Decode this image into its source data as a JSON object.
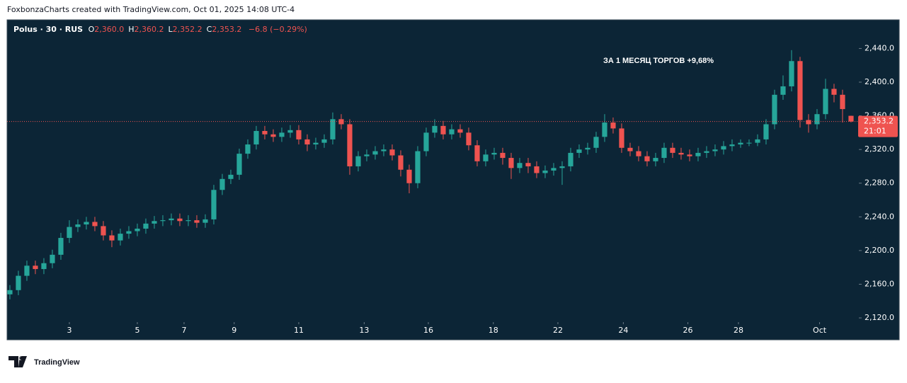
{
  "header": {
    "attribution": "FoxbonzaCharts created with TradingView.com, Oct 01, 2025 14:08 UTC-4"
  },
  "chart_data": {
    "type": "candlestick",
    "symbol": "Polus · 30 · RUS",
    "legend": [
      {
        "key": "O",
        "value": "2,360.0"
      },
      {
        "key": "H",
        "value": "2,360.2"
      },
      {
        "key": "L",
        "value": "2,352.2"
      },
      {
        "key": "C",
        "value": "2,353.2"
      }
    ],
    "change": "−6.8 (−0.29%)",
    "annotation": "ЗА 1 МЕСЯЦ ТОРГОВ +9,68%",
    "last_price_label": "2,353.2",
    "countdown": "21:01",
    "up_color": "#26a69a",
    "down_color": "#ef5350",
    "background": "#0c2536",
    "price_line": true,
    "xlim": [
      -0.33,
      99.92
    ],
    "xticks": [
      {
        "value": 7,
        "label": "3"
      },
      {
        "value": 15,
        "label": "5"
      },
      {
        "value": 20.5,
        "label": "7"
      },
      {
        "value": 26.4,
        "label": "9"
      },
      {
        "value": 34,
        "label": "11"
      },
      {
        "value": 41.7,
        "label": "13"
      },
      {
        "value": 49.25,
        "label": "16"
      },
      {
        "value": 56.9,
        "label": "18"
      },
      {
        "value": 64.5,
        "label": "22"
      },
      {
        "value": 72.2,
        "label": "24"
      },
      {
        "value": 79.8,
        "label": "26"
      },
      {
        "value": 85.75,
        "label": "28"
      },
      {
        "value": 95.3,
        "label": "Oct"
      }
    ],
    "ylim": [
      2115,
      2474
    ],
    "yticks": [
      {
        "value": 2120,
        "label": "2,120.0"
      },
      {
        "value": 2160,
        "label": "2,160.0"
      },
      {
        "value": 2200,
        "label": "2,200.0"
      },
      {
        "value": 2240,
        "label": "2,240.0"
      },
      {
        "value": 2280,
        "label": "2,280.0"
      },
      {
        "value": 2320,
        "label": "2,320.0"
      },
      {
        "value": 2360,
        "label": "2,360.0"
      },
      {
        "value": 2400,
        "label": "2,400.0"
      },
      {
        "value": 2440,
        "label": "2,440.0"
      }
    ],
    "open": [
      2148,
      2153,
      2170,
      2182,
      2178,
      2185,
      2195,
      2215,
      2228,
      2231,
      2234,
      2229,
      2218,
      2212,
      2220,
      2223,
      2226,
      2232,
      2235,
      2236,
      2238,
      2235,
      2236,
      2233,
      2237,
      2272,
      2285,
      2290,
      2315,
      2326,
      2342,
      2338,
      2335,
      2340,
      2343,
      2332,
      2326,
      2328,
      2332,
      2356,
      2350,
      2300,
      2312,
      2314,
      2318,
      2320,
      2313,
      2296,
      2280,
      2318,
      2340,
      2348,
      2338,
      2344,
      2340,
      2325,
      2306,
      2314,
      2316,
      2310,
      2298,
      2304,
      2300,
      2292,
      2295,
      2298,
      2300,
      2316,
      2320,
      2322,
      2335,
      2352,
      2345,
      2322,
      2318,
      2312,
      2306,
      2310,
      2322,
      2316,
      2314,
      2312,
      2316,
      2318,
      2320,
      2324,
      2326,
      2328,
      2328,
      2332,
      2350,
      2385,
      2395,
      2425,
      2355,
      2350,
      2362,
      2392,
      2385,
      2360
    ],
    "high": [
      2159,
      2176,
      2188,
      2188,
      2191,
      2201,
      2221,
      2236,
      2237,
      2240,
      2240,
      2235,
      2224,
      2226,
      2229,
      2232,
      2238,
      2241,
      2242,
      2244,
      2244,
      2242,
      2242,
      2243,
      2278,
      2291,
      2296,
      2321,
      2332,
      2348,
      2348,
      2344,
      2346,
      2349,
      2349,
      2338,
      2334,
      2338,
      2364,
      2362,
      2356,
      2318,
      2320,
      2324,
      2326,
      2326,
      2319,
      2302,
      2324,
      2346,
      2356,
      2354,
      2350,
      2350,
      2346,
      2331,
      2320,
      2322,
      2322,
      2316,
      2310,
      2310,
      2306,
      2301,
      2304,
      2306,
      2322,
      2326,
      2328,
      2341,
      2362,
      2358,
      2351,
      2328,
      2324,
      2318,
      2316,
      2328,
      2328,
      2322,
      2320,
      2322,
      2324,
      2326,
      2330,
      2332,
      2332,
      2332,
      2338,
      2356,
      2391,
      2408,
      2438,
      2430,
      2362,
      2368,
      2404,
      2398,
      2391,
      2360.2
    ],
    "low": [
      2142,
      2147,
      2164,
      2172,
      2172,
      2179,
      2189,
      2209,
      2222,
      2225,
      2223,
      2212,
      2204,
      2206,
      2214,
      2217,
      2220,
      2226,
      2229,
      2230,
      2229,
      2229,
      2227,
      2227,
      2231,
      2266,
      2279,
      2284,
      2309,
      2320,
      2332,
      2329,
      2329,
      2334,
      2326,
      2318,
      2320,
      2322,
      2326,
      2344,
      2290,
      2294,
      2306,
      2308,
      2312,
      2307,
      2288,
      2268,
      2274,
      2312,
      2334,
      2332,
      2332,
      2334,
      2319,
      2300,
      2300,
      2308,
      2302,
      2285,
      2292,
      2292,
      2286,
      2286,
      2289,
      2278,
      2294,
      2310,
      2314,
      2316,
      2329,
      2339,
      2316,
      2312,
      2306,
      2300,
      2300,
      2304,
      2310,
      2308,
      2306,
      2306,
      2310,
      2312,
      2314,
      2318,
      2322,
      2324,
      2324,
      2326,
      2344,
      2379,
      2389,
      2346,
      2340,
      2344,
      2356,
      2376,
      2352,
      2352.2
    ],
    "close": [
      2153,
      2170,
      2182,
      2178,
      2185,
      2195,
      2215,
      2228,
      2231,
      2234,
      2229,
      2218,
      2212,
      2220,
      2223,
      2226,
      2232,
      2235,
      2236,
      2238,
      2235,
      2236,
      2233,
      2237,
      2272,
      2285,
      2290,
      2315,
      2326,
      2342,
      2338,
      2335,
      2340,
      2343,
      2332,
      2326,
      2328,
      2332,
      2356,
      2350,
      2300,
      2312,
      2314,
      2318,
      2320,
      2313,
      2296,
      2280,
      2318,
      2340,
      2348,
      2338,
      2344,
      2340,
      2325,
      2306,
      2314,
      2316,
      2310,
      2298,
      2304,
      2300,
      2292,
      2295,
      2298,
      2300,
      2316,
      2320,
      2322,
      2335,
      2352,
      2345,
      2322,
      2318,
      2312,
      2306,
      2310,
      2322,
      2316,
      2314,
      2312,
      2316,
      2318,
      2320,
      2324,
      2326,
      2328,
      2328,
      2332,
      2350,
      2385,
      2395,
      2425,
      2355,
      2350,
      2362,
      2392,
      2385,
      2368,
      2353.2
    ]
  },
  "footer": {
    "brand": "TradingView"
  }
}
